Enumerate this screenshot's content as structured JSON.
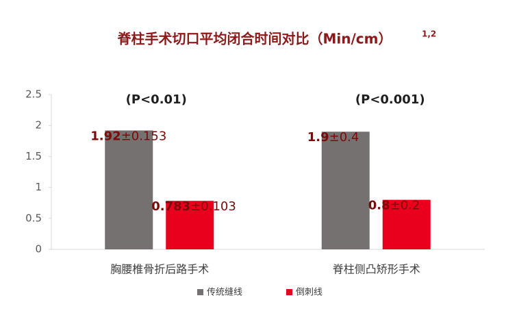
{
  "chart_data": {
    "type": "bar",
    "title": "脊柱手术切口平均闭合时间对比（Min/cm）",
    "title_superscript": "1,2",
    "categories": [
      "胸腰椎骨折后路手术",
      "脊柱侧凸矫形手术"
    ],
    "annotations": [
      "(P<0.01)",
      "(P<0.001)"
    ],
    "series": [
      {
        "name": "传统缝线",
        "color": "#767171",
        "values": [
          1.92,
          1.9
        ],
        "error_labels": [
          "±0.153",
          "±0.4"
        ]
      },
      {
        "name": "倒刺线",
        "color": "#e8001c",
        "values": [
          0.783,
          0.8
        ],
        "error_labels": [
          "±0.103",
          "±0.2"
        ]
      }
    ],
    "ylim": [
      0,
      2.5
    ],
    "yticks": [
      0,
      0.5,
      1,
      1.5,
      2,
      2.5
    ],
    "grid": false
  }
}
